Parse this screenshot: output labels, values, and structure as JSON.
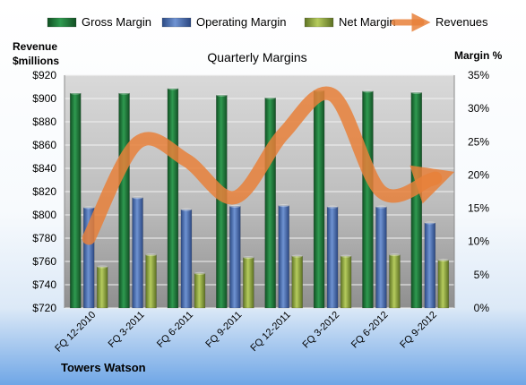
{
  "chart_data": {
    "type": "bar",
    "title": "Quarterly Margins",
    "source_label": "Towers Watson",
    "left_axis_label": [
      "Revenue",
      "$millions"
    ],
    "right_axis_label": "Margin %",
    "categories": [
      "FQ 12-2010",
      "FQ 3-2011",
      "FQ 6-2011",
      "FQ 9-2011",
      "FQ 12-2011",
      "FQ 3-2012",
      "FQ 6-2012",
      "FQ 9-2012"
    ],
    "left_axis": {
      "min": 720,
      "max": 920,
      "step": 20,
      "tick_labels": [
        "$720",
        "$740",
        "$760",
        "$780",
        "$800",
        "$820",
        "$840",
        "$860",
        "$880",
        "$900",
        "$920"
      ]
    },
    "right_axis": {
      "min": 0,
      "max": 35,
      "step": 5,
      "tick_labels": [
        "0%",
        "5%",
        "10%",
        "15%",
        "20%",
        "25%",
        "30%",
        "35%"
      ]
    },
    "legend_placement": "top",
    "grid": true,
    "series": [
      {
        "name": "Gross Margin",
        "kind": "bar",
        "axis": "right",
        "color": "#1f7a3a",
        "values": [
          32.3,
          32.3,
          33.0,
          32.0,
          31.6,
          32.7,
          32.6,
          32.4
        ]
      },
      {
        "name": "Operating Margin",
        "kind": "bar",
        "axis": "right",
        "color": "#3e63a8",
        "values": [
          15.1,
          16.6,
          14.8,
          15.3,
          15.4,
          15.2,
          15.2,
          12.8
        ]
      },
      {
        "name": "Net Margin",
        "kind": "bar",
        "axis": "right",
        "color": "#8fa83a",
        "values": [
          6.2,
          8.0,
          5.2,
          7.6,
          7.8,
          7.8,
          8.0,
          7.2
        ]
      },
      {
        "name": "Revenues",
        "kind": "line",
        "axis": "left",
        "color": "#e8803a",
        "values": [
          780,
          862,
          847,
          815,
          870,
          903,
          820,
          830
        ]
      }
    ]
  }
}
